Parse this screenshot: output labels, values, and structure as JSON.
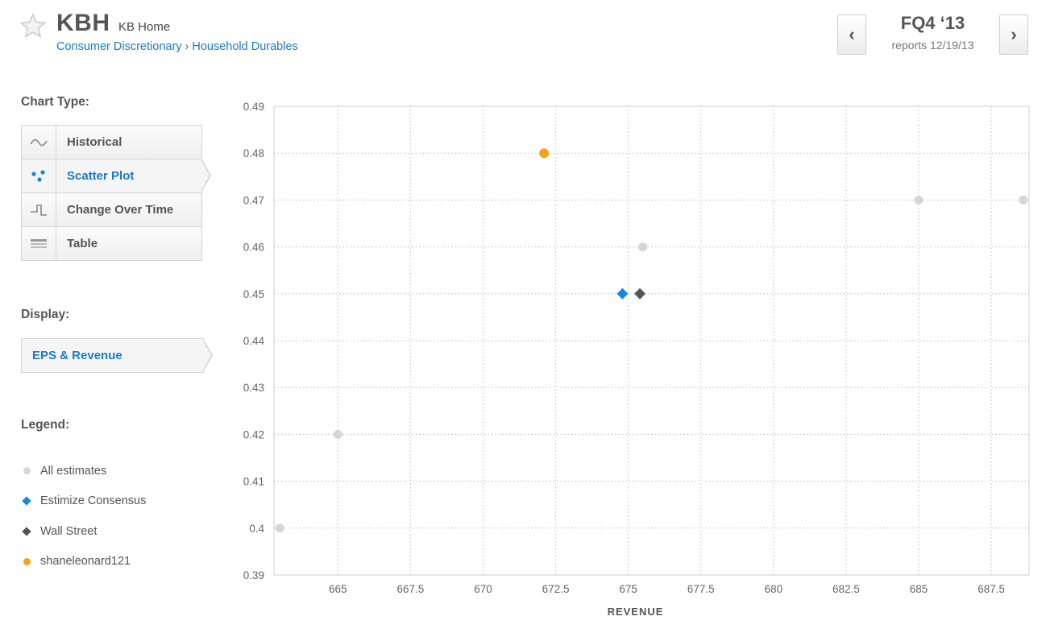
{
  "header": {
    "ticker": "KBH",
    "company": "KB Home",
    "sector": "Consumer Discretionary",
    "separator": "›",
    "industry": "Household Durables",
    "period": "FQ4 ‘13",
    "reports": "reports 12/19/13",
    "prev_icon": "chevron-left-icon",
    "next_icon": "chevron-right-icon",
    "prev_label": "‹",
    "next_label": "›"
  },
  "sidebar": {
    "chart_type_label": "Chart Type:",
    "chart_types": [
      {
        "label": "Historical",
        "icon": "wave-icon",
        "active": false
      },
      {
        "label": "Scatter Plot",
        "icon": "scatter-icon",
        "active": true
      },
      {
        "label": "Change Over Time",
        "icon": "step-icon",
        "active": false
      },
      {
        "label": "Table",
        "icon": "table-icon",
        "active": false
      }
    ],
    "display_label": "Display:",
    "display_value": "EPS & Revenue",
    "legend_label": "Legend:",
    "legend": [
      {
        "label": "All estimates",
        "marker": "dot",
        "color": "#d6d6d6"
      },
      {
        "label": "Estimize Consensus",
        "marker": "diamond",
        "color": "#1b87d8"
      },
      {
        "label": "Wall Street",
        "marker": "diamond",
        "color": "#555555"
      },
      {
        "label": "shaneleonard121",
        "marker": "dot",
        "color": "#f7a21b"
      }
    ]
  },
  "chart_data": {
    "type": "scatter",
    "xlabel": "REVENUE",
    "ylabel": "",
    "xlim": [
      662.8,
      688.8
    ],
    "ylim": [
      0.39,
      0.49
    ],
    "xticks": [
      665,
      667.5,
      670,
      672.5,
      675,
      677.5,
      680,
      682.5,
      685,
      687.5
    ],
    "yticks": [
      0.39,
      0.4,
      0.41,
      0.42,
      0.43,
      0.44,
      0.45,
      0.46,
      0.47,
      0.48,
      0.49
    ],
    "grid": true,
    "series": [
      {
        "name": "All estimates",
        "marker": "dot",
        "color": "#d6d6d6",
        "points": [
          [
            663.0,
            0.4
          ],
          [
            665.0,
            0.42
          ],
          [
            675.5,
            0.46
          ],
          [
            685.0,
            0.47
          ],
          [
            688.6,
            0.47
          ]
        ]
      },
      {
        "name": "Estimize Consensus",
        "marker": "diamond",
        "color": "#1b87d8",
        "points": [
          [
            674.8,
            0.45
          ]
        ]
      },
      {
        "name": "Wall Street",
        "marker": "diamond",
        "color": "#555555",
        "points": [
          [
            675.4,
            0.45
          ]
        ]
      },
      {
        "name": "shaneleonard121",
        "marker": "dot",
        "color": "#f7a21b",
        "points": [
          [
            672.1,
            0.48
          ]
        ]
      }
    ]
  }
}
